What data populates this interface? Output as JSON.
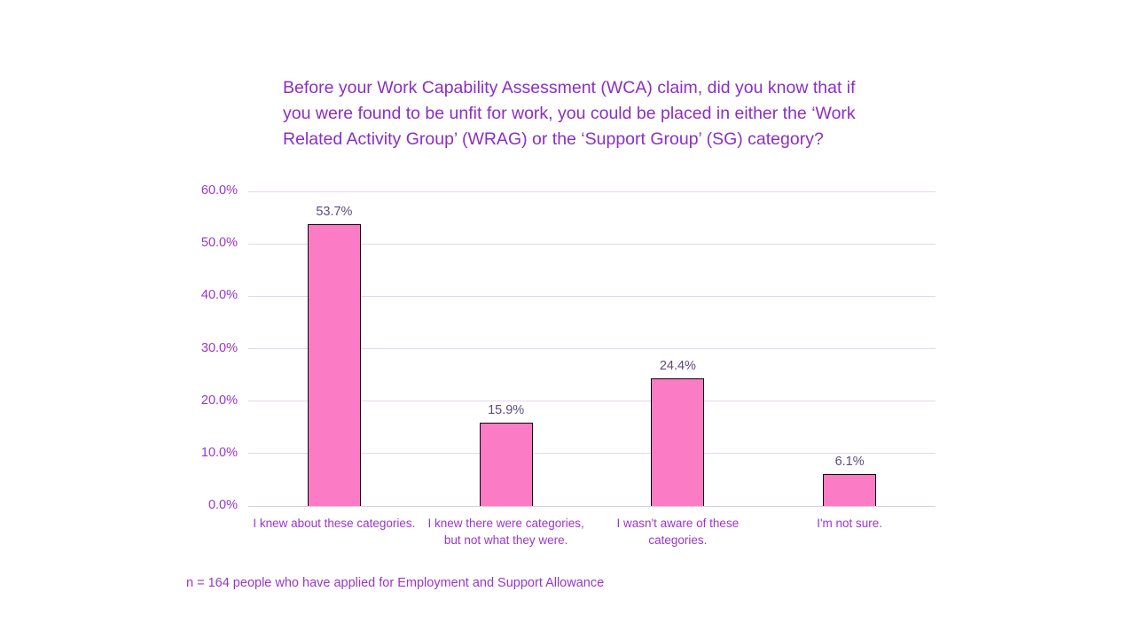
{
  "chart_data": {
    "type": "bar",
    "title": "Before your Work Capability Assessment (WCA) claim, did you know that if you were found to be unfit for work, you could be placed in either the ‘Work Related Activity Group’ (WRAG) or the ‘Support Group’ (SG) category?",
    "categories": [
      "I knew about these categories.",
      "I knew there were categories, but not what they were.",
      "I wasn't aware of these categories.",
      "I'm not sure."
    ],
    "values": [
      53.7,
      15.9,
      24.4,
      6.1
    ],
    "value_labels": [
      "53.7%",
      "15.9%",
      "24.4%",
      "6.1%"
    ],
    "xlabel": "",
    "ylabel": "",
    "ylim": [
      0,
      60
    ],
    "y_tick_values": [
      0,
      10,
      20,
      30,
      40,
      50,
      60
    ],
    "y_tick_labels": [
      "0.0%",
      "10.0%",
      "20.0%",
      "30.0%",
      "40.0%",
      "50.0%",
      "60.0%"
    ],
    "grid": true,
    "legend": false,
    "footnote": "n = 164 people who have applied for Employment and Support Allowance",
    "colors": {
      "background": "#ffffff",
      "title_text": "#8b2fc3",
      "axis_text": "#9a35cc",
      "value_label_text": "#5f4a7d",
      "bar_fill": "#fb7cc4",
      "bar_border": "#0a0410",
      "gridline": "#e9d3ed",
      "baseline": "#dacbde"
    }
  }
}
